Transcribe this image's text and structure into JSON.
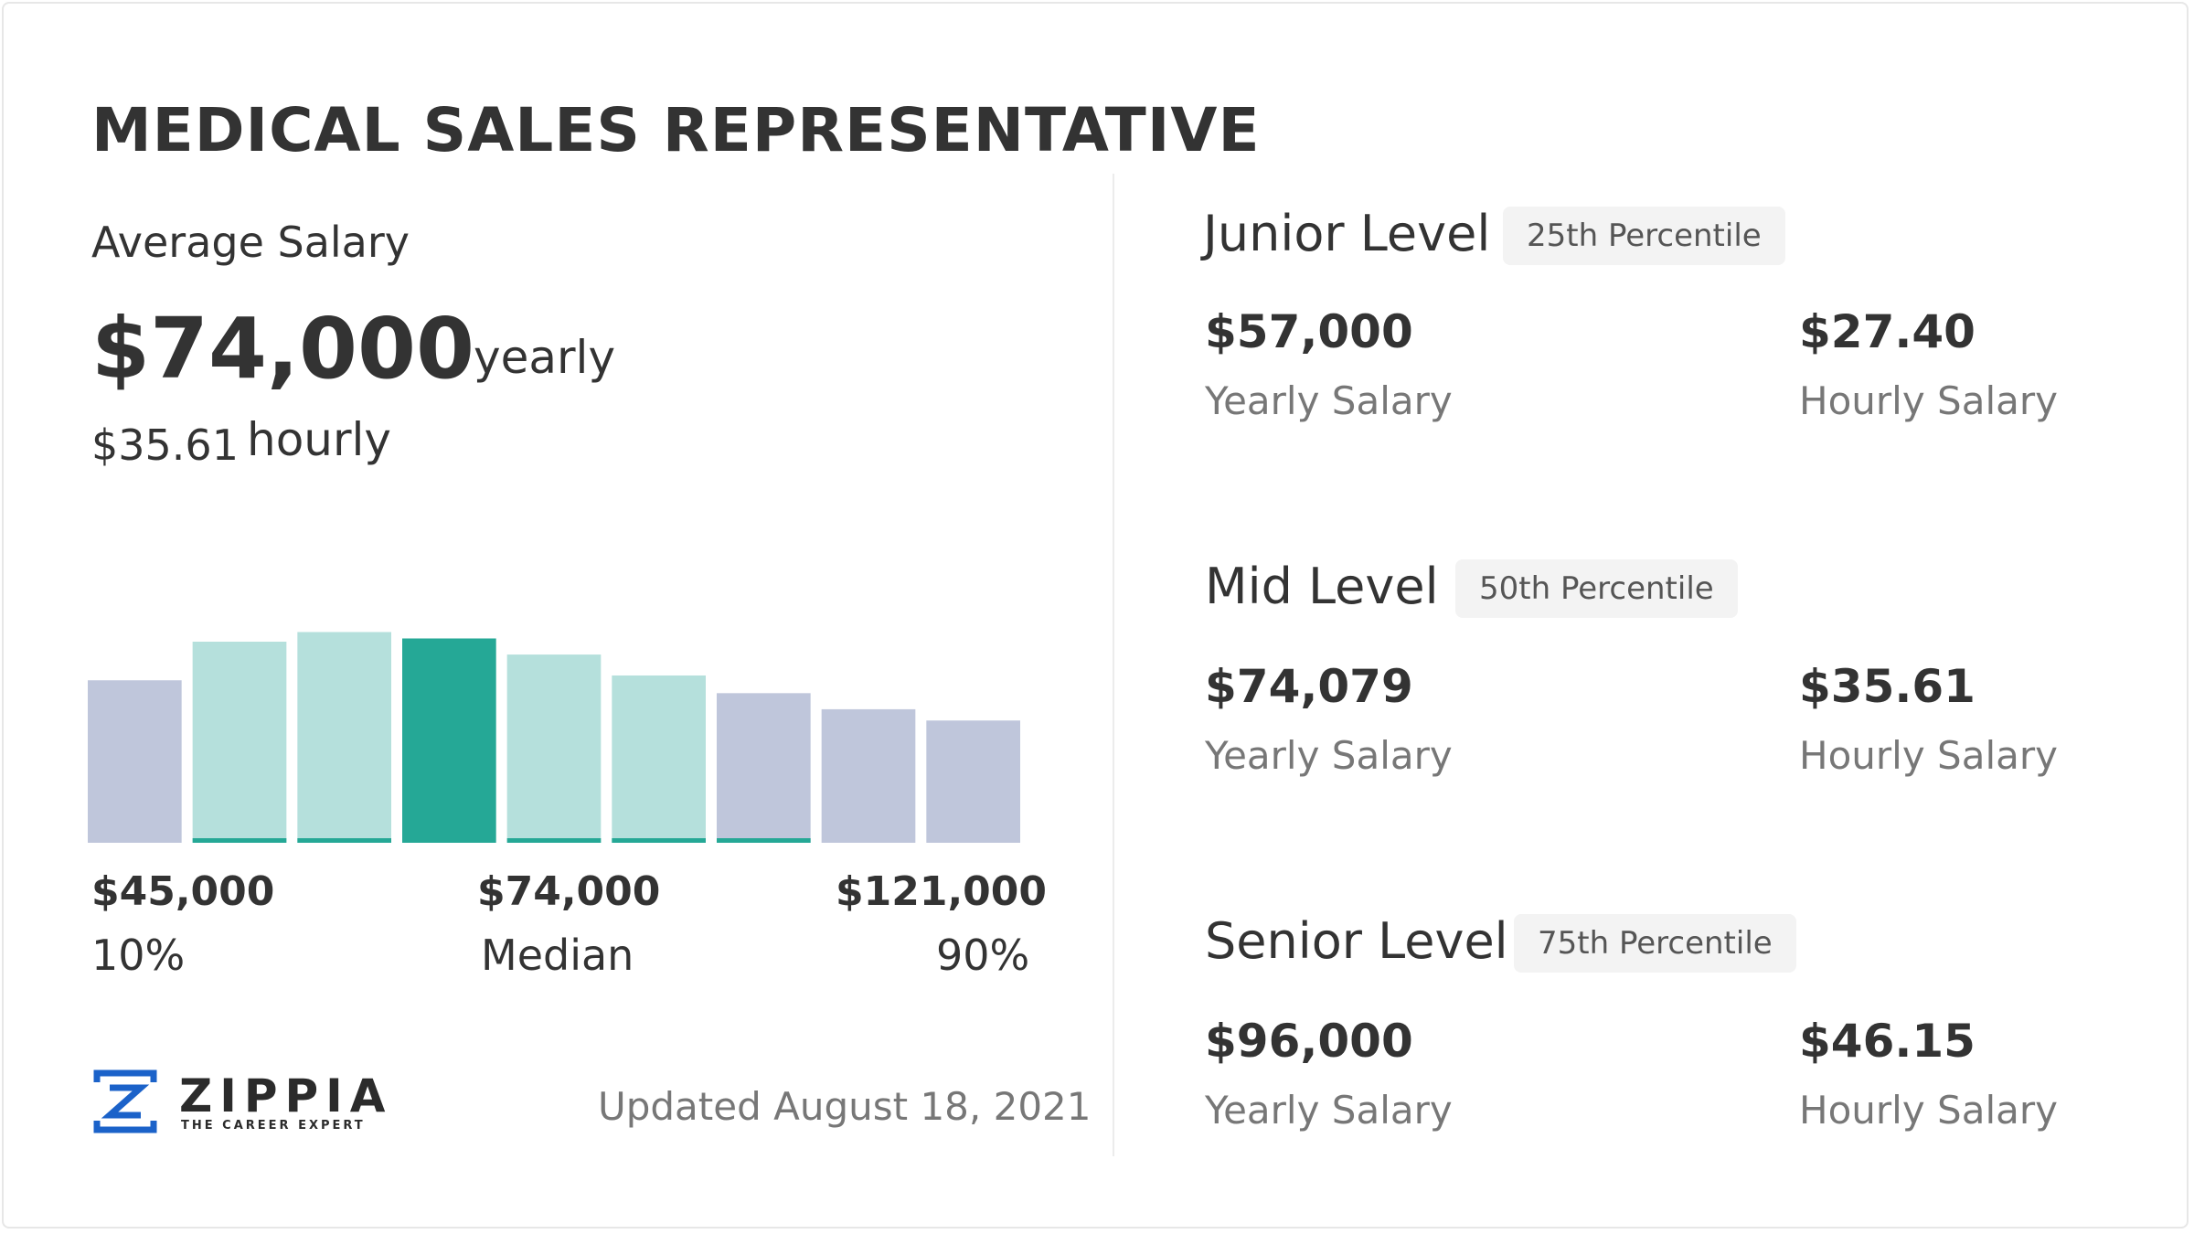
{
  "title": "MEDICAL SALES REPRESENTATIVE",
  "average": {
    "label": "Average Salary",
    "yearly_value": "$74,000",
    "yearly_unit": "yearly",
    "hourly_value": "$35.61",
    "hourly_unit": "hourly"
  },
  "chart_data": {
    "type": "bar",
    "title": "",
    "values": [
      0.505,
      0.625,
      0.655,
      0.635,
      0.585,
      0.52,
      0.465,
      0.415,
      0.38
    ],
    "highlight_index": 3,
    "colors": {
      "outer": "#bfc6db",
      "inner": "#b5e0dc",
      "median": "#25a896",
      "accent_line": "#25a896"
    },
    "bar_styles": [
      "outer",
      "inner",
      "inner",
      "median",
      "inner",
      "inner",
      "outer",
      "outer",
      "outer"
    ],
    "underline": [
      false,
      true,
      true,
      false,
      true,
      true,
      true,
      false,
      false
    ],
    "ticks": [
      {
        "value": "$45,000",
        "label": "10%"
      },
      {
        "value": "$74,000",
        "label": "Median"
      },
      {
        "value": "$121,000",
        "label": "90%"
      }
    ]
  },
  "levels": [
    {
      "name": "Junior Level",
      "percentile": "25th Percentile",
      "yearly": "$57,000",
      "yearly_label": "Yearly Salary",
      "hourly": "$27.40",
      "hourly_label": "Hourly Salary"
    },
    {
      "name": "Mid Level",
      "percentile": "50th Percentile",
      "yearly": "$74,079",
      "yearly_label": "Yearly Salary",
      "hourly": "$35.61",
      "hourly_label": "Hourly Salary"
    },
    {
      "name": "Senior Level",
      "percentile": "75th Percentile",
      "yearly": "$96,000",
      "yearly_label": "Yearly Salary",
      "hourly": "$46.15",
      "hourly_label": "Hourly Salary"
    }
  ],
  "footer": {
    "brand": "ZIPPIA",
    "tagline": "THE CAREER EXPERT",
    "updated": "Updated August 18, 2021",
    "logo_icon": "zippia-logo-icon",
    "brand_color": "#1b62c9"
  }
}
